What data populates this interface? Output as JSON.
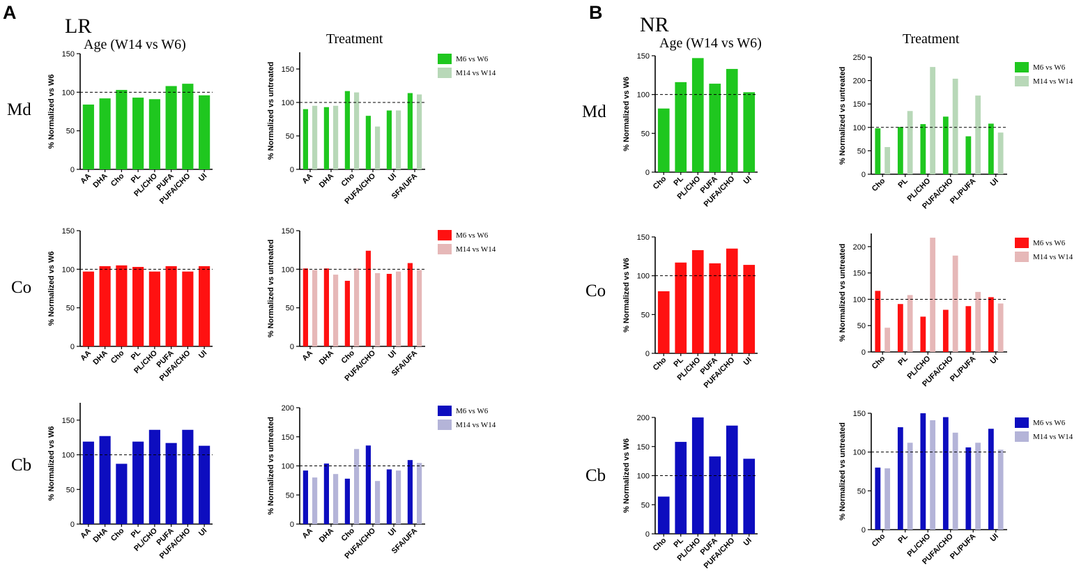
{
  "panel_labels": [
    "A",
    "B"
  ],
  "section_titles": [
    "LR",
    "NR"
  ],
  "column_titles": {
    "age": "Age (W14 vs W6)",
    "treatment": "Treatment"
  },
  "row_labels": [
    "Md",
    "Co",
    "Cb"
  ],
  "axis_labels": {
    "age": "% Normalized vs W6",
    "treatment": "% Normalized vs untreated"
  },
  "legend": [
    "M6 vs W6",
    "M14 vs W14"
  ],
  "colors": {
    "Md": [
      "#1fc71f",
      "#b8d8b8"
    ],
    "Co": [
      "#ff1111",
      "#e6b8b8"
    ],
    "Cb": [
      "#0d0dbf",
      "#b4b4d8"
    ]
  },
  "chart_data": [
    {
      "id": "LR-Md-age",
      "type": "bar",
      "section": "LR",
      "region": "Md",
      "column": "age",
      "categories": [
        "AA",
        "DHA",
        "Cho",
        "PL",
        "PL/CHO",
        "PUFA",
        "PUFA/CHO",
        "UI"
      ],
      "series": [
        {
          "name": "",
          "values": [
            84,
            92,
            103,
            93,
            91,
            108,
            111,
            96
          ]
        }
      ],
      "ylim": [
        0,
        150
      ],
      "yticks": [
        0,
        50,
        100,
        150
      ],
      "reference_line": 100
    },
    {
      "id": "LR-Md-treat",
      "type": "bar",
      "section": "LR",
      "region": "Md",
      "column": "treatment",
      "categories": [
        "AA",
        "DHA",
        "Cho",
        "PUFA/CHO",
        "UI",
        "SFA/UFA"
      ],
      "series": [
        {
          "name": "M6 vs W6",
          "values": [
            90,
            93,
            117,
            80,
            88,
            114
          ]
        },
        {
          "name": "M14 vs W14",
          "values": [
            95,
            95,
            115,
            64,
            88,
            112
          ]
        }
      ],
      "ylim": [
        0,
        175
      ],
      "yticks": [
        0,
        50,
        100,
        150
      ],
      "reference_line": 100
    },
    {
      "id": "LR-Co-age",
      "type": "bar",
      "section": "LR",
      "region": "Co",
      "column": "age",
      "categories": [
        "AA",
        "DHA",
        "Cho",
        "PL",
        "PL/CHO",
        "PUFA",
        "PUFA/CHO",
        "UI"
      ],
      "series": [
        {
          "name": "",
          "values": [
            97,
            104,
            105,
            103,
            97,
            104,
            97,
            104
          ]
        }
      ],
      "ylim": [
        0,
        150
      ],
      "yticks": [
        0,
        50,
        100,
        150
      ],
      "reference_line": 100
    },
    {
      "id": "LR-Co-treat",
      "type": "bar",
      "section": "LR",
      "region": "Co",
      "column": "treatment",
      "categories": [
        "AA",
        "DHA",
        "Cho",
        "PUFA/CHO",
        "UI",
        "SFA/UFA"
      ],
      "series": [
        {
          "name": "M6 vs W6",
          "values": [
            101,
            101,
            85,
            124,
            94,
            108
          ]
        },
        {
          "name": "M14 vs W14",
          "values": [
            99,
            93,
            101,
            95,
            97,
            99
          ]
        }
      ],
      "ylim": [
        0,
        150
      ],
      "yticks": [
        0,
        50,
        100,
        150
      ],
      "reference_line": 100
    },
    {
      "id": "LR-Cb-age",
      "type": "bar",
      "section": "LR",
      "region": "Cb",
      "column": "age",
      "categories": [
        "AA",
        "DHA",
        "Cho",
        "PL",
        "PL/CHO",
        "PUFA",
        "PUFA/CHO",
        "UI"
      ],
      "series": [
        {
          "name": "",
          "values": [
            119,
            127,
            87,
            119,
            136,
            117,
            136,
            113
          ]
        }
      ],
      "ylim": [
        0,
        175
      ],
      "yticks": [
        0,
        50,
        100,
        150
      ],
      "reference_line": 100
    },
    {
      "id": "LR-Cb-treat",
      "type": "bar",
      "section": "LR",
      "region": "Cb",
      "column": "treatment",
      "categories": [
        "AA",
        "DHA",
        "Cho",
        "PUFA/CHO",
        "UI",
        "SFA/UFA"
      ],
      "series": [
        {
          "name": "M6 vs W6",
          "values": [
            92,
            104,
            78,
            135,
            94,
            110
          ]
        },
        {
          "name": "M14 vs W14",
          "values": [
            80,
            86,
            129,
            74,
            92,
            105
          ]
        }
      ],
      "ylim": [
        0,
        200
      ],
      "yticks": [
        0,
        50,
        100,
        150,
        200
      ],
      "reference_line": 100
    },
    {
      "id": "NR-Md-age",
      "type": "bar",
      "section": "NR",
      "region": "Md",
      "column": "age",
      "categories": [
        "Cho",
        "PL",
        "PL/CHO",
        "PUFA",
        "PUFA/CHO",
        "UI"
      ],
      "series": [
        {
          "name": "",
          "values": [
            82,
            116,
            147,
            114,
            133,
            103
          ]
        }
      ],
      "ylim": [
        0,
        150
      ],
      "yticks": [
        0,
        50,
        100,
        150
      ],
      "reference_line": 100
    },
    {
      "id": "NR-Md-treat",
      "type": "bar",
      "section": "NR",
      "region": "Md",
      "column": "treatment",
      "categories": [
        "Cho",
        "PL",
        "PL/CHO",
        "PUFA/CHO",
        "PL/PUFA",
        "UI"
      ],
      "series": [
        {
          "name": "M6 vs W6",
          "values": [
            98,
            101,
            107,
            123,
            81,
            108
          ]
        },
        {
          "name": "M14 vs W14",
          "values": [
            58,
            135,
            229,
            204,
            168,
            89
          ]
        }
      ],
      "ylim": [
        0,
        250
      ],
      "yticks": [
        0,
        50,
        100,
        150,
        200,
        250
      ],
      "reference_line": 100
    },
    {
      "id": "NR-Co-age",
      "type": "bar",
      "section": "NR",
      "region": "Co",
      "column": "age",
      "categories": [
        "Cho",
        "PL",
        "PL/CHO",
        "PUFA",
        "PUFA/CHO",
        "UI"
      ],
      "series": [
        {
          "name": "",
          "values": [
            80,
            117,
            133,
            116,
            135,
            114
          ]
        }
      ],
      "ylim": [
        0,
        150
      ],
      "yticks": [
        0,
        50,
        100,
        150
      ],
      "reference_line": 100
    },
    {
      "id": "NR-Co-treat",
      "type": "bar",
      "section": "NR",
      "region": "Co",
      "column": "treatment",
      "categories": [
        "Cho",
        "PL",
        "PL/CHO",
        "PUFA/CHO",
        "PL/PUFA",
        "UI"
      ],
      "series": [
        {
          "name": "M6 vs W6",
          "values": [
            116,
            91,
            67,
            80,
            87,
            104
          ]
        },
        {
          "name": "M14 vs W14",
          "values": [
            46,
            108,
            217,
            183,
            114,
            92
          ]
        }
      ],
      "ylim": [
        0,
        225
      ],
      "yticks": [
        0,
        50,
        100,
        150,
        200
      ],
      "reference_line": 100
    },
    {
      "id": "NR-Cb-age",
      "type": "bar",
      "section": "NR",
      "region": "Cb",
      "column": "age",
      "categories": [
        "Cho",
        "PL",
        "PL/CHO",
        "PUFA",
        "PUFA/CHO",
        "UI"
      ],
      "series": [
        {
          "name": "",
          "values": [
            64,
            158,
            200,
            133,
            186,
            129
          ]
        }
      ],
      "ylim": [
        0,
        200
      ],
      "yticks": [
        0,
        50,
        100,
        150,
        200
      ],
      "reference_line": 100
    },
    {
      "id": "NR-Cb-treat",
      "type": "bar",
      "section": "NR",
      "region": "Cb",
      "column": "treatment",
      "categories": [
        "Cho",
        "PL",
        "PL/CHO",
        "PUFA/CHO",
        "PL/PUFA",
        "UI"
      ],
      "series": [
        {
          "name": "M6 vs W6",
          "values": [
            80,
            132,
            150,
            145,
            106,
            130
          ]
        },
        {
          "name": "M14 vs W14",
          "values": [
            79,
            112,
            141,
            125,
            112,
            103
          ]
        }
      ],
      "ylim": [
        0,
        150
      ],
      "yticks": [
        0,
        50,
        100,
        150
      ],
      "reference_line": 100
    }
  ]
}
